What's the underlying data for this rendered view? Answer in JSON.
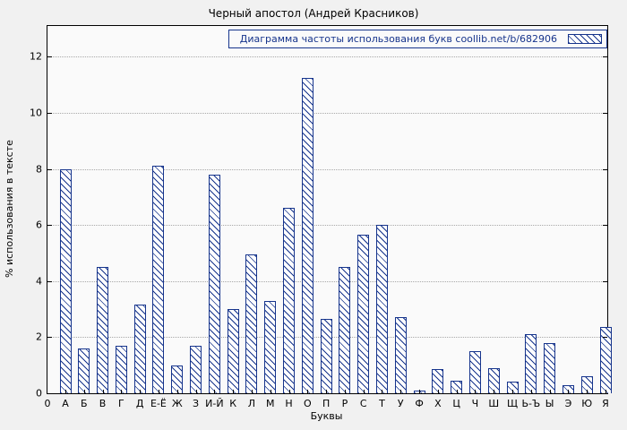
{
  "chart_data": {
    "type": "bar",
    "title": "Черный апостол (Андрей Красников)",
    "legend": "Диаграмма частоты использования букв coollib.net/b/682906",
    "legend_position": "top-right",
    "xlabel": "Буквы",
    "ylabel": "% использования в тексте",
    "origin_tick_label": "0",
    "categories": [
      "А",
      "Б",
      "В",
      "Г",
      "Д",
      "Е-Ё",
      "Ж",
      "З",
      "И-Й",
      "К",
      "Л",
      "М",
      "Н",
      "О",
      "П",
      "Р",
      "С",
      "Т",
      "У",
      "Ф",
      "Х",
      "Ц",
      "Ч",
      "Ш",
      "Щ",
      "Ь-Ъ",
      "Ы",
      "Э",
      "Ю",
      "Я"
    ],
    "values": [
      8.0,
      1.6,
      4.5,
      1.7,
      3.15,
      8.1,
      1.0,
      1.7,
      7.8,
      3.0,
      4.95,
      3.3,
      6.6,
      11.25,
      2.65,
      4.5,
      5.65,
      6.0,
      2.7,
      0.1,
      0.85,
      0.45,
      1.5,
      0.9,
      0.4,
      2.1,
      1.8,
      0.3,
      0.6,
      2.35
    ],
    "yticks": [
      0,
      2,
      4,
      6,
      8,
      10,
      12
    ],
    "ylim": [
      0,
      13.1
    ],
    "grid": "horizontal-dotted",
    "bar_style": "hatched",
    "bar_color": "#16348c",
    "grid_color": "#a8a8a8",
    "figure_background": "#f1f1f1",
    "plot_background": "#fafafa"
  }
}
